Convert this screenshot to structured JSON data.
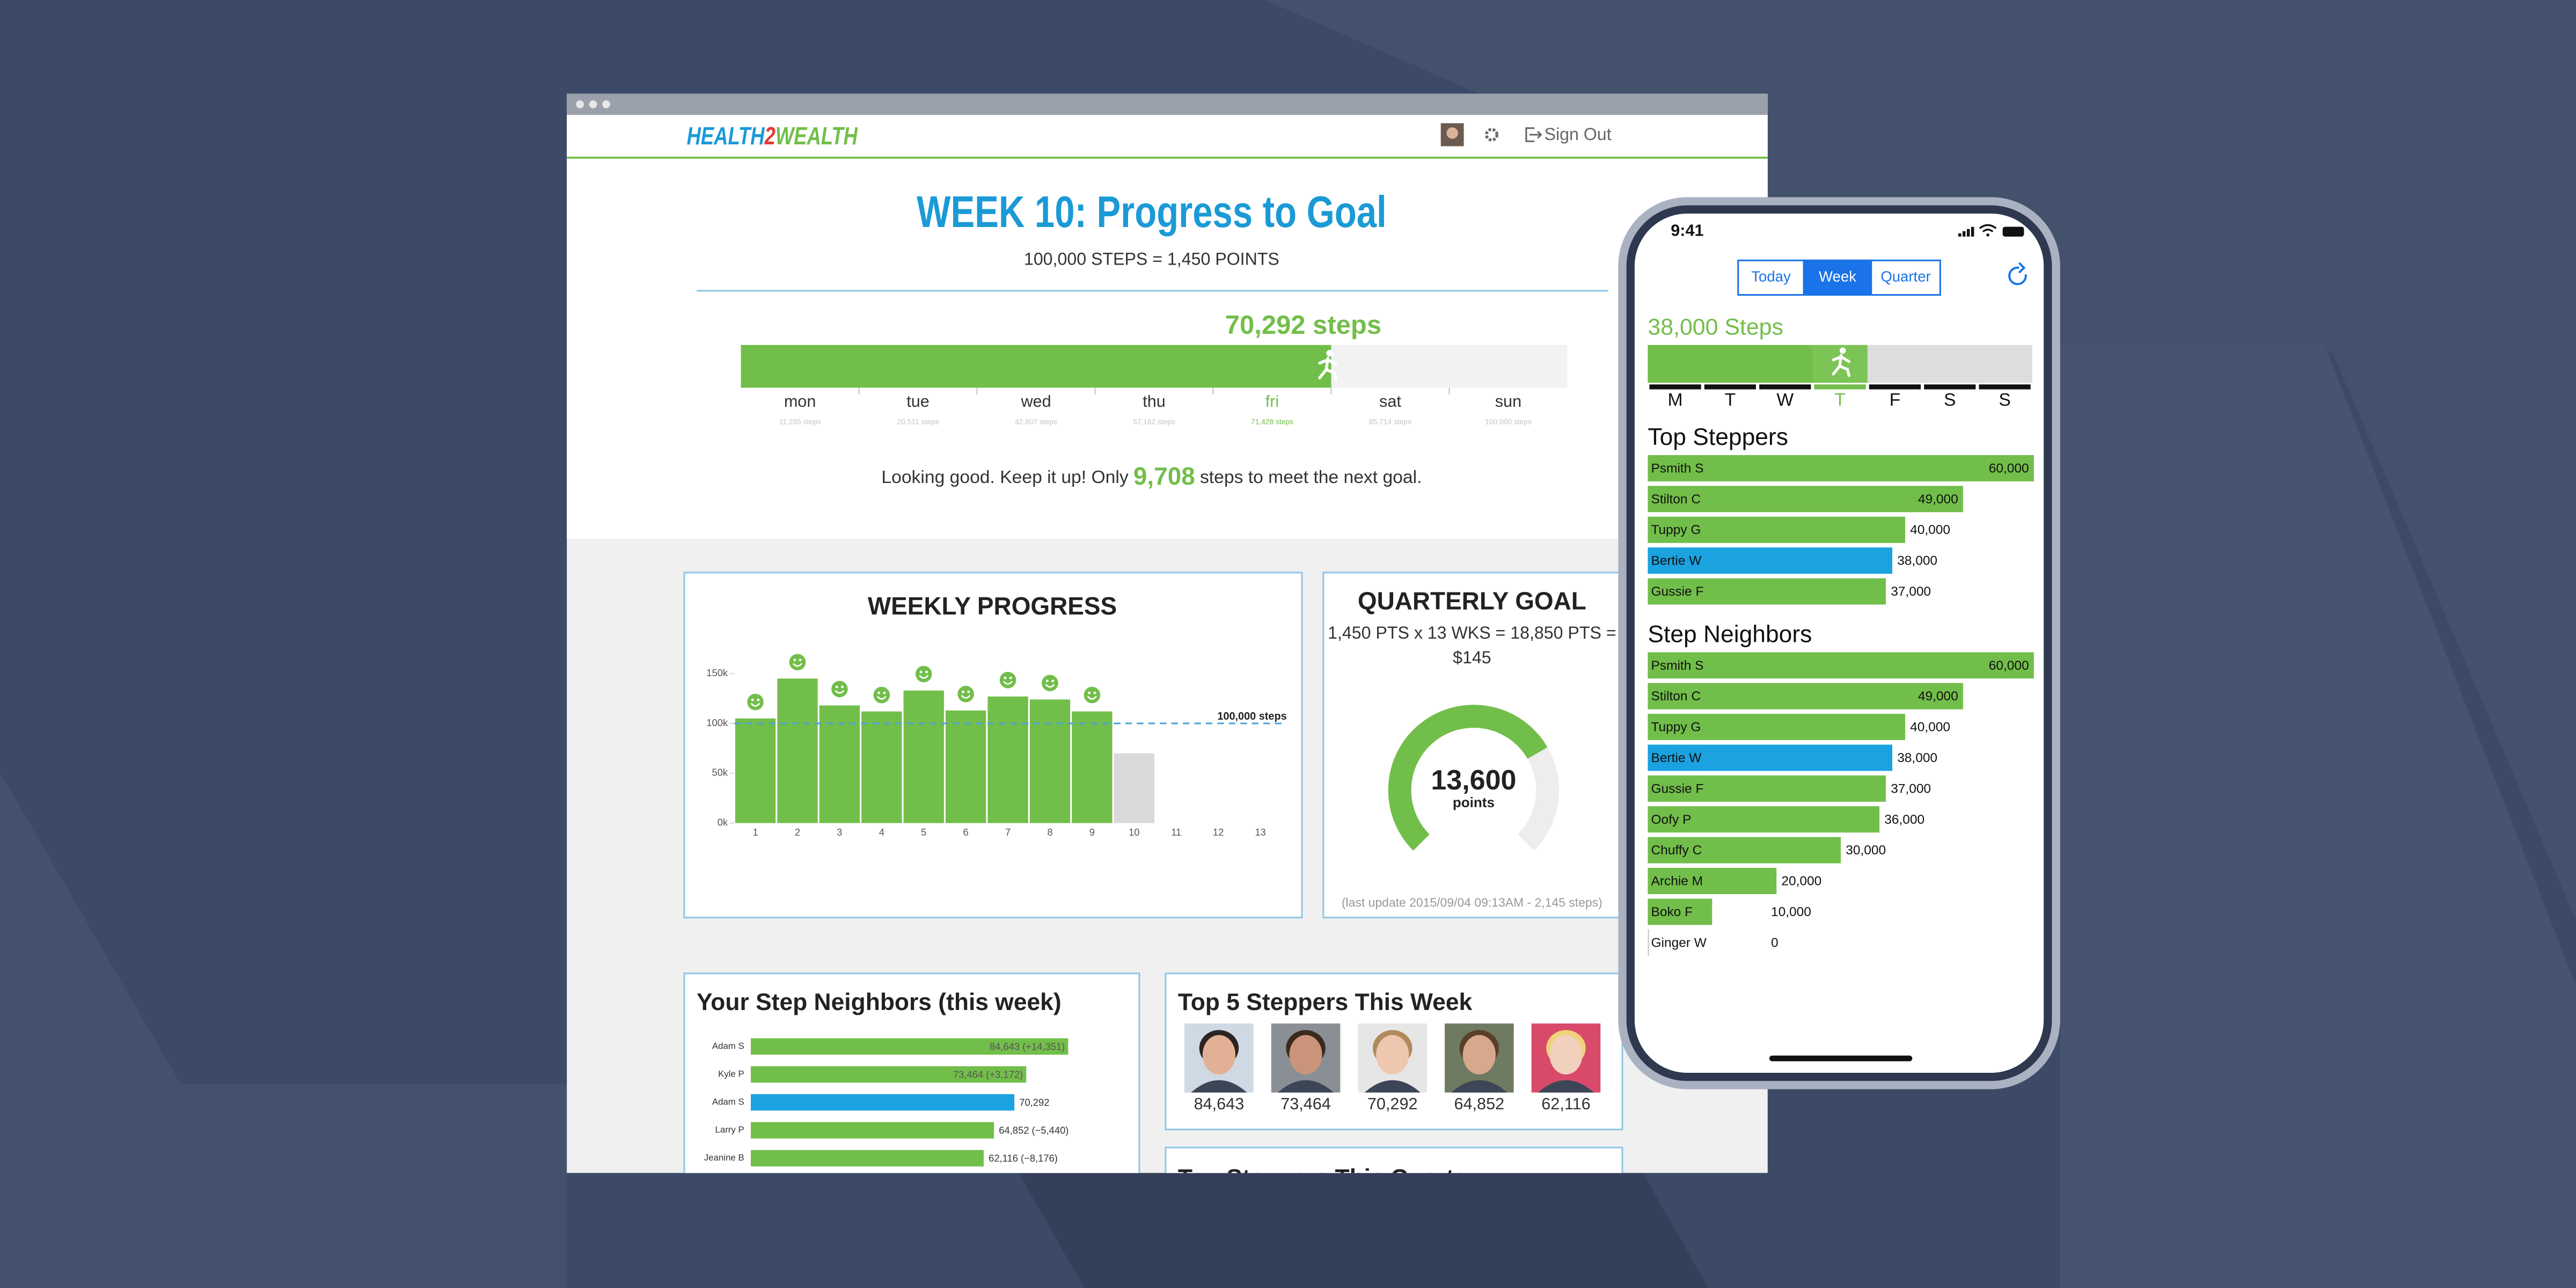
{
  "browser": {
    "logo": [
      "HEALTH",
      "2",
      "WEALTH"
    ],
    "sign_out": "Sign Out"
  },
  "hero": {
    "title": "WEEK 10: Progress to Goal",
    "subtitle": "100,000 STEPS = 1,450 POINTS",
    "steps_label": "70,292 steps",
    "days": [
      "mon",
      "tue",
      "wed",
      "thu",
      "fri",
      "sat",
      "sun"
    ],
    "day_steps": [
      "11,285 steps",
      "20,511 steps",
      "42,807 steps",
      "57,162 steps",
      "71,428 steps",
      "85,714 steps",
      "100,000 steps"
    ],
    "current_day": 4,
    "message": {
      "before": "Looking good. Keep it up! Only",
      "steps": "9,708",
      "after": "steps to meet the next goal."
    }
  },
  "weekly_progress": {
    "type": "bar",
    "title": "WEEKLY PROGRESS",
    "categories": [
      "1",
      "2",
      "3",
      "4",
      "5",
      "6",
      "7",
      "8",
      "9",
      "10",
      "11",
      "12",
      "13"
    ],
    "values": [
      105000,
      145000,
      118000,
      112000,
      133000,
      113000,
      127000,
      124000,
      112000,
      70000,
      null,
      null,
      null
    ],
    "color": "#72be4a",
    "highlight": {
      "index": 9,
      "color": "#d9d9d9"
    },
    "ylim": [
      0,
      150000
    ],
    "yticks": [
      {
        "value": 0,
        "label": "0k"
      },
      {
        "value": 50000,
        "label": "50k"
      },
      {
        "value": 100000,
        "label": "100k"
      },
      {
        "value": 150000,
        "label": "150k"
      }
    ],
    "target": {
      "value": 100000,
      "label": "100,000 steps"
    }
  },
  "quarterly_goal": {
    "title": "QUARTERLY GOAL",
    "formula": [
      "1,450 PTS x 13 WKS = 18,850 PTS =",
      "$145"
    ],
    "value": 13600,
    "value_label": "13,600",
    "max": 18850,
    "unit": "points",
    "last_update": "(last update 2015/09/04 09:13AM - 2,145 steps)"
  },
  "step_neighbors": {
    "title": "Your Step Neighbors (this week)",
    "names": [
      "Adam S",
      "Kyle P",
      "Adam S",
      "Larry P",
      "Jeanine B"
    ],
    "values": [
      84643,
      73464,
      70292,
      64852,
      62116
    ],
    "value_labels": [
      "84,643 (+14,351)",
      "73,464 (+3,172)",
      "70,292",
      "64,852 (−5,440)",
      "62,116 (−8,176)"
    ],
    "highlight_index": 2,
    "xlim": [
      0,
      85000
    ]
  },
  "top_5": {
    "title": "Top 5 Steppers This Week",
    "labels": [
      "84,643",
      "73,464",
      "70,292",
      "64,852",
      "62,116"
    ]
  },
  "top_quarter": {
    "title": "Top Steppers This Quarter"
  },
  "phone": {
    "time": "9:41",
    "tabs": [
      "Today",
      "Week",
      "Quarter"
    ],
    "selected_tab": 1,
    "steps_label": "38,000 Steps",
    "days": [
      "M",
      "T",
      "W",
      "T",
      "F",
      "S",
      "S"
    ],
    "current_day": 3,
    "xlim": [
      0,
      60000
    ],
    "lists": [
      {
        "title": "Top Steppers",
        "names": [
          "Psmith S",
          "Stilton C",
          "Tuppy G",
          "Bertie W",
          "Gussie F"
        ],
        "values": [
          60000,
          49000,
          40000,
          38000,
          37000
        ],
        "value_labels": [
          "60,000",
          "49,000",
          "40,000",
          "38,000",
          "37,000"
        ],
        "highlight_index": 3
      },
      {
        "title": "Step Neighbors",
        "names": [
          "Psmith S",
          "Stilton C",
          "Tuppy G",
          "Bertie W",
          "Gussie F",
          "Oofy P",
          "Chuffy C",
          "Archie M",
          "Boko F",
          "Ginger W"
        ],
        "values": [
          60000,
          49000,
          40000,
          38000,
          37000,
          36000,
          30000,
          20000,
          10000,
          0
        ],
        "value_labels": [
          "60,000",
          "49,000",
          "40,000",
          "38,000",
          "37,000",
          "36,000",
          "30,000",
          "20,000",
          "10,000",
          "0"
        ],
        "highlight_index": 3
      }
    ]
  }
}
